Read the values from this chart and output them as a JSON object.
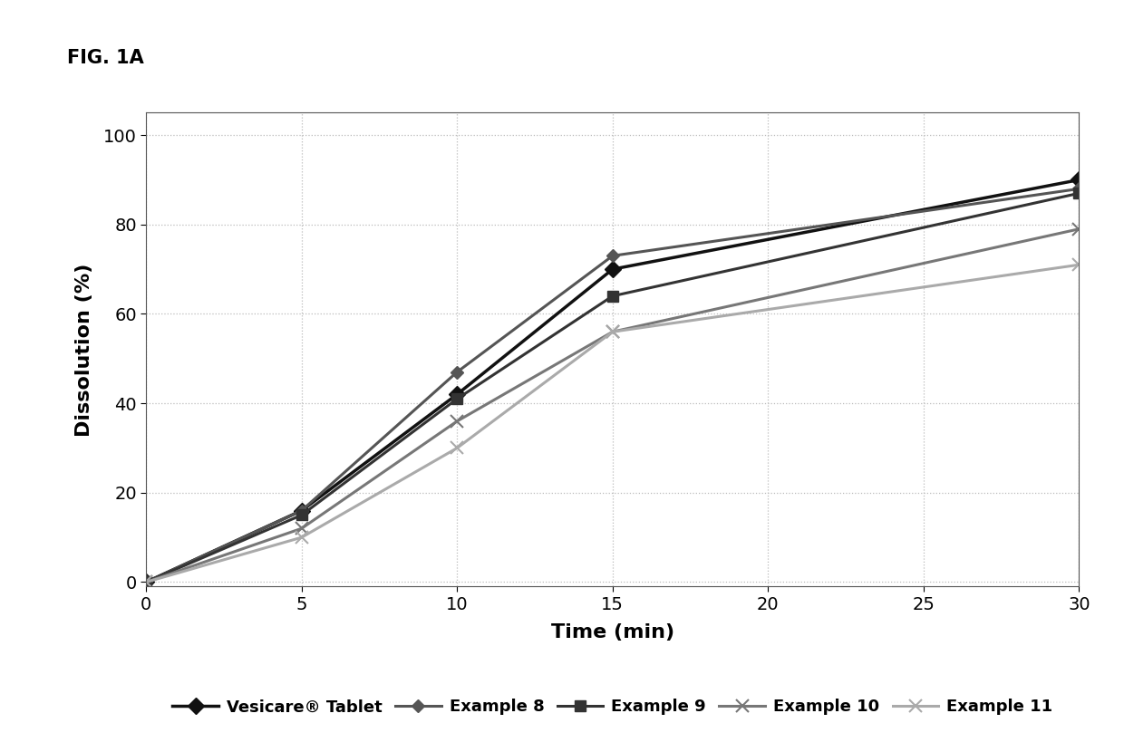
{
  "xlabel": "Time (min)",
  "ylabel": "Dissolution (%)",
  "xlim": [
    0,
    30
  ],
  "ylim": [
    -1,
    105
  ],
  "xticks": [
    0,
    5,
    10,
    15,
    20,
    25,
    30
  ],
  "yticks": [
    0,
    20,
    40,
    60,
    80,
    100
  ],
  "series": [
    {
      "label": "Vesicare® Tablet",
      "x": [
        0,
        5,
        10,
        15,
        30
      ],
      "y": [
        0,
        16,
        42,
        70,
        90
      ],
      "color": "#111111",
      "linewidth": 2.5,
      "marker": "D",
      "markersize": 9,
      "markerfacecolor": "#111111",
      "markeredgecolor": "#111111",
      "linestyle": "-"
    },
    {
      "label": "Example 8",
      "x": [
        0,
        5,
        10,
        15,
        30
      ],
      "y": [
        0,
        16,
        47,
        73,
        88
      ],
      "color": "#555555",
      "linewidth": 2.2,
      "marker": "D",
      "markersize": 7,
      "markerfacecolor": "#555555",
      "markeredgecolor": "#555555",
      "linestyle": "-"
    },
    {
      "label": "Example 9",
      "x": [
        0,
        5,
        10,
        15,
        30
      ],
      "y": [
        0,
        15,
        41,
        64,
        87
      ],
      "color": "#333333",
      "linewidth": 2.2,
      "marker": "s",
      "markersize": 8,
      "markerfacecolor": "#333333",
      "markeredgecolor": "#333333",
      "linestyle": "-"
    },
    {
      "label": "Example 10",
      "x": [
        0,
        5,
        10,
        15,
        30
      ],
      "y": [
        0,
        12,
        36,
        56,
        79
      ],
      "color": "#777777",
      "linewidth": 2.2,
      "marker": "x",
      "markersize": 10,
      "markerfacecolor": "#777777",
      "markeredgecolor": "#777777",
      "linestyle": "-"
    },
    {
      "label": "Example 11",
      "x": [
        0,
        5,
        10,
        15,
        30
      ],
      "y": [
        0,
        10,
        30,
        56,
        71
      ],
      "color": "#aaaaaa",
      "linewidth": 2.2,
      "marker": "x",
      "markersize": 10,
      "markerfacecolor": "#aaaaaa",
      "markeredgecolor": "#aaaaaa",
      "linestyle": "-"
    }
  ],
  "background_color": "#ffffff",
  "grid_color": "#bbbbbb",
  "fig_label": "FIG. 1A",
  "fig_label_fontsize": 15,
  "axis_label_fontsize": 16,
  "tick_fontsize": 14,
  "legend_fontsize": 13
}
